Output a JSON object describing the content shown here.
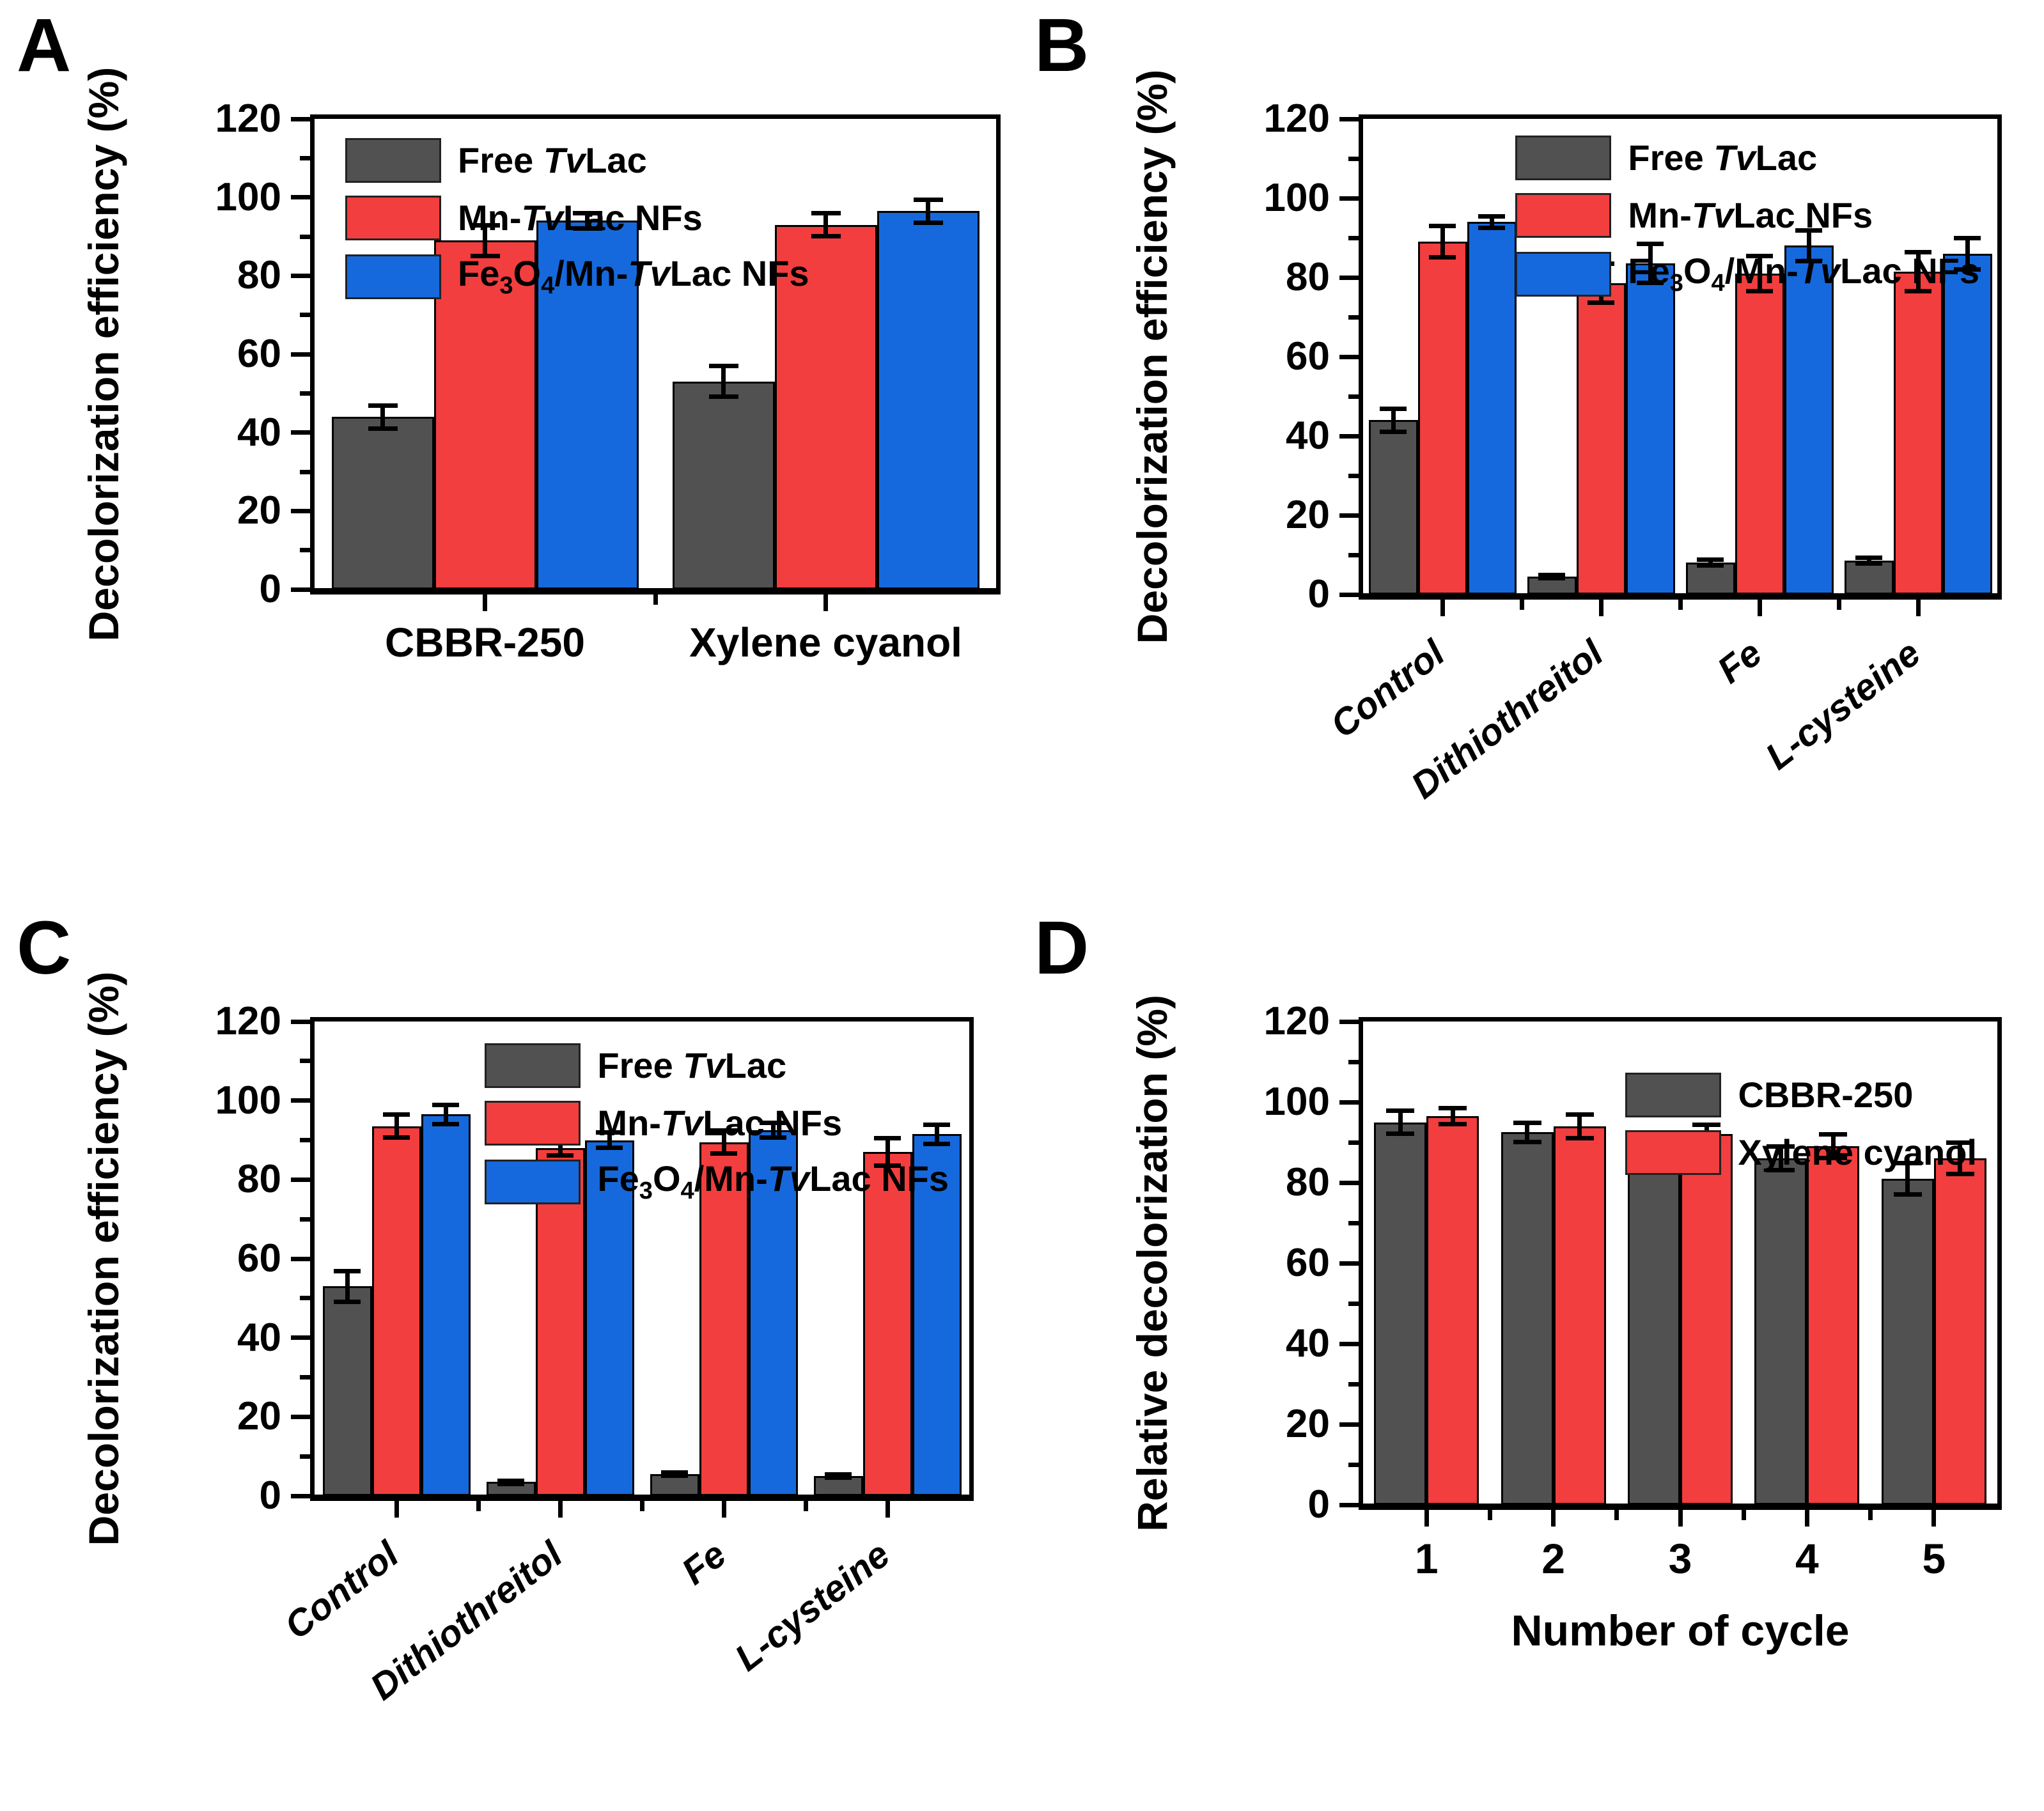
{
  "figure": {
    "background": "#ffffff",
    "panel_letters": [
      "A",
      "B",
      "C",
      "D"
    ]
  },
  "colors": {
    "gray": "#515151",
    "red": "#f23e3e",
    "blue": "#1669dc",
    "axis": "#000000",
    "text": "#000000"
  },
  "chart_data": [
    {
      "id": "A",
      "type": "bar",
      "panel_label": "A",
      "ylabel": "Decolorization efficiency (%)",
      "xlabel": "",
      "ylim": [
        0,
        120
      ],
      "ytick_step": 20,
      "grid": false,
      "legend_position": "top-left",
      "categories": [
        "CBBR-250",
        "Xylene cyanol"
      ],
      "series": [
        {
          "name": "Free <i>Tv</i>Lac",
          "color_key": "gray",
          "values": [
            44,
            53
          ],
          "errors": [
            3,
            4
          ]
        },
        {
          "name": "Mn-<i>Tv</i>Lac NFs",
          "color_key": "red",
          "values": [
            89,
            93
          ],
          "errors": [
            4,
            3
          ]
        },
        {
          "name": "Fe<sub>3</sub>O<sub>4</sub>/Mn-<i>Tv</i>Lac NFs",
          "color_key": "blue",
          "values": [
            94,
            96.5
          ],
          "errors": [
            2,
            3
          ]
        }
      ]
    },
    {
      "id": "B",
      "type": "bar",
      "panel_label": "B",
      "ylabel": "Decolorization efficiency (%)",
      "xlabel": "",
      "ylim": [
        0,
        120
      ],
      "ytick_step": 20,
      "grid": false,
      "legend_position": "top-right",
      "categories": [
        "Control",
        "Dithiothreitol",
        "Fe",
        "L-cysteine"
      ],
      "series": [
        {
          "name": "Free <i>Tv</i>Lac",
          "color_key": "gray",
          "values": [
            44,
            4.5,
            8,
            8.5
          ],
          "errors": [
            3,
            0.5,
            0.8,
            0.8
          ]
        },
        {
          "name": "Mn-<i>Tv</i>Lac NFs",
          "color_key": "red",
          "values": [
            89,
            78.5,
            81,
            81.5
          ],
          "errors": [
            4,
            5,
            4.5,
            5
          ]
        },
        {
          "name": "Fe<sub>3</sub>O<sub>4</sub>/Mn-<i>Tv</i>Lac NFs",
          "color_key": "blue",
          "values": [
            94,
            83.5,
            88,
            86
          ],
          "errors": [
            1.5,
            5,
            4,
            4
          ]
        }
      ]
    },
    {
      "id": "C",
      "type": "bar",
      "panel_label": "C",
      "ylabel": "Decolorization efficiency (%)",
      "xlabel": "",
      "ylim": [
        0,
        120
      ],
      "ytick_step": 20,
      "grid": false,
      "legend_position": "top-right",
      "categories": [
        "Control",
        "Dithiothreitol",
        "Fe",
        "L-cysteine"
      ],
      "series": [
        {
          "name": "Free <i>Tv</i>Lac",
          "color_key": "gray",
          "values": [
            53,
            3.5,
            5.5,
            5
          ],
          "errors": [
            4,
            0.4,
            0.5,
            0.5
          ]
        },
        {
          "name": "Mn-<i>Tv</i>Lac NFs",
          "color_key": "red",
          "values": [
            93.5,
            88,
            89.5,
            87
          ],
          "errors": [
            3,
            2,
            3,
            3.5
          ]
        },
        {
          "name": "Fe<sub>3</sub>O<sub>4</sub>/Mn-<i>Tv</i>Lac NFs",
          "color_key": "blue",
          "values": [
            96.5,
            90,
            92.5,
            91.5
          ],
          "errors": [
            2.5,
            2,
            2,
            2.5
          ]
        }
      ]
    },
    {
      "id": "D",
      "type": "bar",
      "panel_label": "D",
      "ylabel": "Relative decolorization (%)",
      "xlabel": "Number of cycle",
      "ylim": [
        0,
        120
      ],
      "ytick_step": 20,
      "grid": false,
      "legend_position": "top-right",
      "categories": [
        "1",
        "2",
        "3",
        "4",
        "5"
      ],
      "series": [
        {
          "name": "CBBR-250",
          "color_key": "gray",
          "values": [
            95,
            92.5,
            88,
            86,
            81
          ],
          "errors": [
            3,
            2.5,
            3,
            3,
            4
          ]
        },
        {
          "name": "Xylene cyanol",
          "color_key": "red",
          "values": [
            96.5,
            94,
            92,
            89,
            86
          ],
          "errors": [
            2,
            3,
            2.5,
            3,
            4
          ]
        }
      ]
    }
  ]
}
